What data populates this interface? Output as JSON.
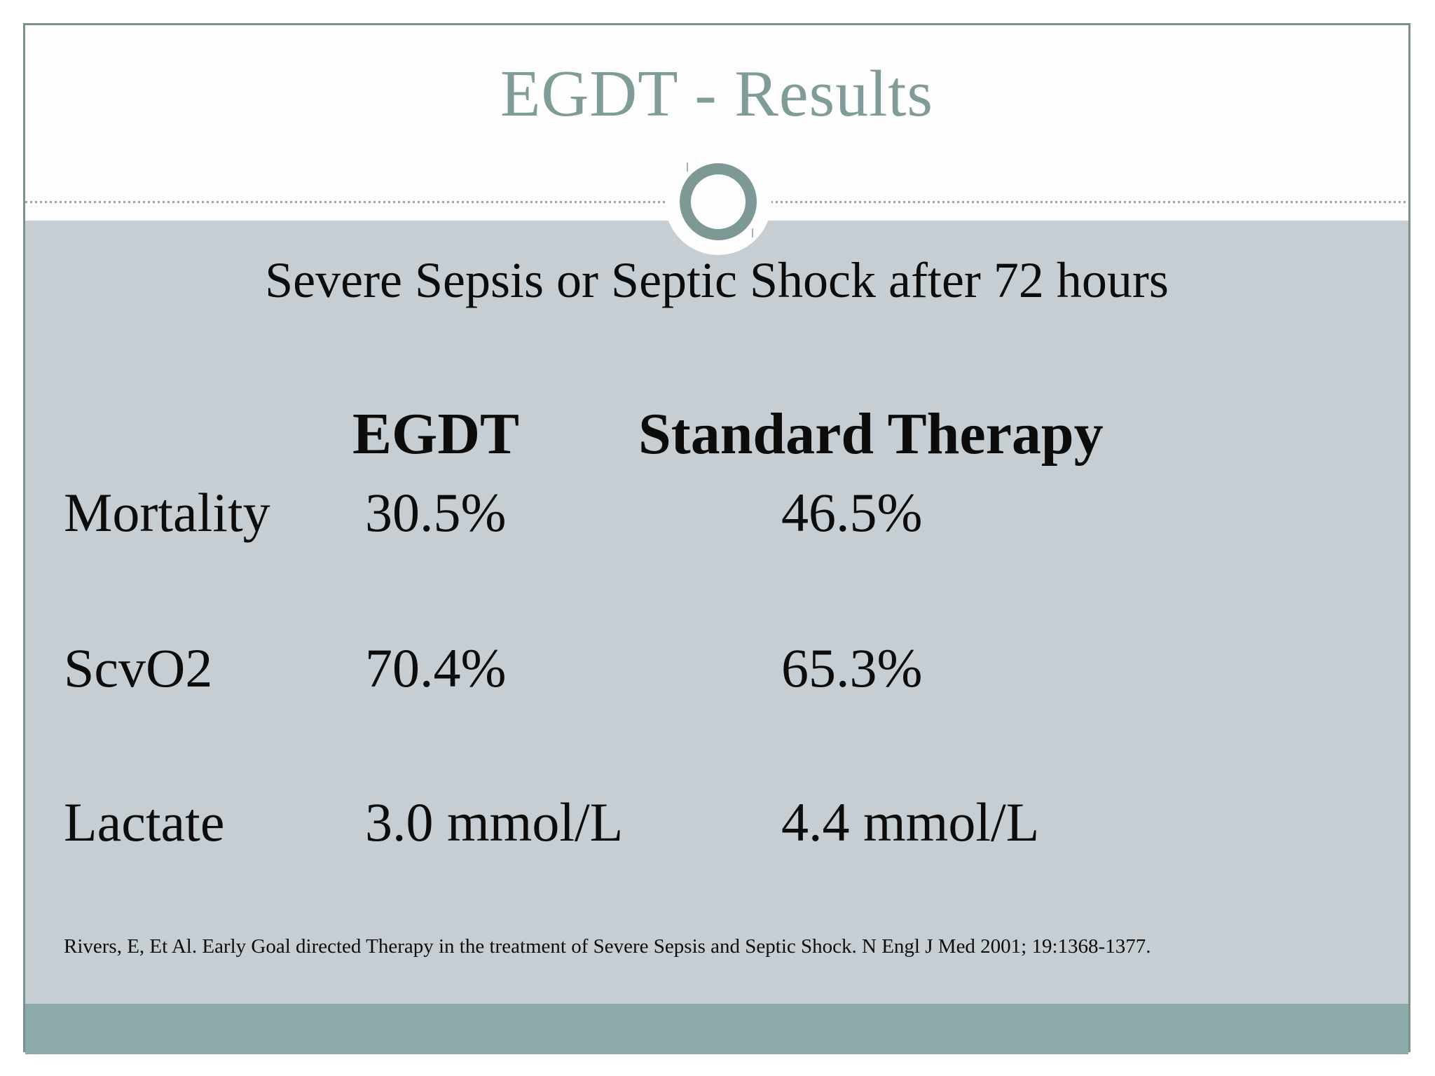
{
  "slide": {
    "title": "EGDT - Results",
    "colors": {
      "accent_teal": "#7f9c99",
      "ring_teal": "#7d9996",
      "border_teal": "#7a918e",
      "content_bg": "#c6ced3",
      "footer_bar": "#8dabaa",
      "text": "#0c0c0c",
      "dotted_line": "#9ba4a1"
    }
  },
  "content": {
    "subtitle": "Severe Sepsis or Septic Shock after 72 hours",
    "citation": "Rivers, E, Et Al. Early Goal directed Therapy in the treatment of Severe Sepsis and Septic Shock. N Engl J Med 2001; 19:1368-1377."
  },
  "table": {
    "header": {
      "egdt": "EGDT",
      "standard": "Standard Therapy"
    },
    "rows": [
      {
        "label": "Mortality",
        "egdt": "30.5%",
        "standard": "46.5%"
      },
      {
        "label": "ScvO2",
        "egdt": "70.4%",
        "standard": "65.3%"
      },
      {
        "label": "Lactate",
        "egdt": "3.0 mmol/L",
        "standard": "4.4 mmol/L"
      }
    ]
  },
  "chart_data": {
    "type": "table",
    "title": "Severe Sepsis or Septic Shock after 72 hours",
    "columns": [
      "",
      "EGDT",
      "Standard Therapy"
    ],
    "rows": [
      [
        "Mortality",
        "30.5%",
        "46.5%"
      ],
      [
        "ScvO2",
        "70.4%",
        "65.3%"
      ],
      [
        "Lactate",
        "3.0 mmol/L",
        "4.4 mmol/L"
      ]
    ]
  }
}
